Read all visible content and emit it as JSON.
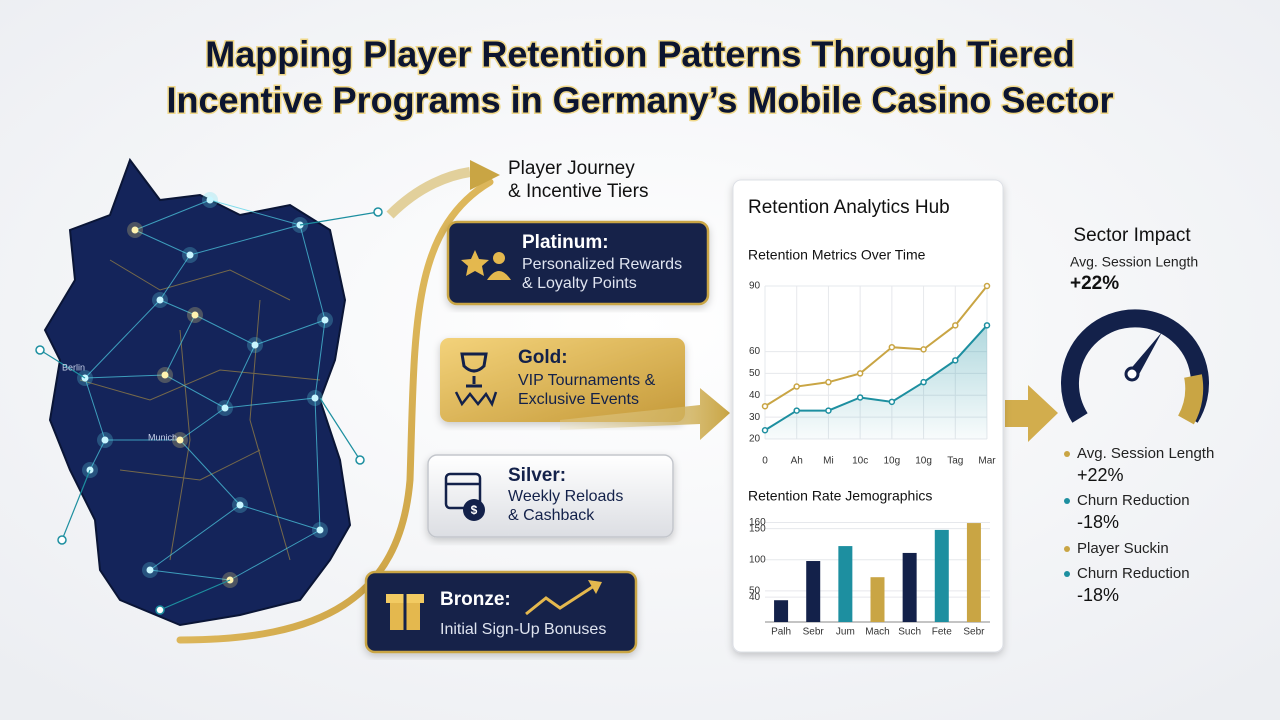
{
  "title": [
    "Mapping Player Retention Patterns Through Tiered",
    "Incentive Programs in Germany’s Mobile Casino Sector"
  ],
  "map_labels": [
    "Berlin",
    "Munich"
  ],
  "journey": [
    "Player Journey",
    "& Incentive Tiers"
  ],
  "tiers": [
    {
      "name": "Platinum:",
      "lines": [
        "Personalized Rewards",
        "& Loyalty Points"
      ]
    },
    {
      "name": "Gold:",
      "lines": [
        "VIP Tournaments &",
        "Exclusive Events"
      ]
    },
    {
      "name": "Silver:",
      "lines": [
        "Weekly Reloads",
        "& Cashback"
      ]
    },
    {
      "name": "Bronze:",
      "lines": [
        "Initial Sign-Up Bonuses"
      ]
    }
  ],
  "hub": {
    "title": "Retention Analytics Hub"
  },
  "chart_data": [
    {
      "type": "line",
      "title": "Retention Metrics Over Time",
      "categories": [
        "0",
        "Ah",
        "Mi",
        "10c",
        "10g",
        "10g",
        "Tag",
        "Mar"
      ],
      "series": [
        {
          "color": "#c9a544",
          "values": [
            35,
            44,
            46,
            50,
            62,
            61,
            72,
            90
          ]
        },
        {
          "color": "#1d8fa0",
          "values": [
            24,
            33,
            33,
            39,
            37,
            46,
            56,
            72
          ]
        }
      ],
      "ylim": [
        20,
        90
      ],
      "yticks": [
        20,
        30,
        40,
        50,
        60,
        90
      ],
      "grid": true
    },
    {
      "type": "bar",
      "title": "Retention Rate Jemographics",
      "categories": [
        "Palh",
        "Sebr",
        "Jum",
        "Mach",
        "Such",
        "Fete",
        "Sebr"
      ],
      "values": [
        35,
        98,
        122,
        72,
        111,
        148,
        159
      ],
      "colors": [
        "#13214a",
        "#13214a",
        "#1d8fa0",
        "#c9a544",
        "#13214a",
        "#1d8fa0",
        "#c9a544"
      ],
      "ylim": [
        0,
        180
      ],
      "yticks": [
        40,
        50,
        100,
        150,
        160
      ],
      "grid": true
    }
  ],
  "impact": {
    "title": "Sector Impact",
    "gauge_label": "Avg. Session Length",
    "gauge_value": "+22%",
    "items": [
      {
        "label": "Avg. Session Length",
        "value": "+22%",
        "color": "#c9a544"
      },
      {
        "label": "Churn Reduction",
        "value": "-18%",
        "color": "#1d8fa0"
      },
      {
        "label": "Player Suckin",
        "color": "#c9a544"
      },
      {
        "label": "Churn Reduction",
        "value": "-18%",
        "color": "#1d8fa0"
      }
    ]
  }
}
